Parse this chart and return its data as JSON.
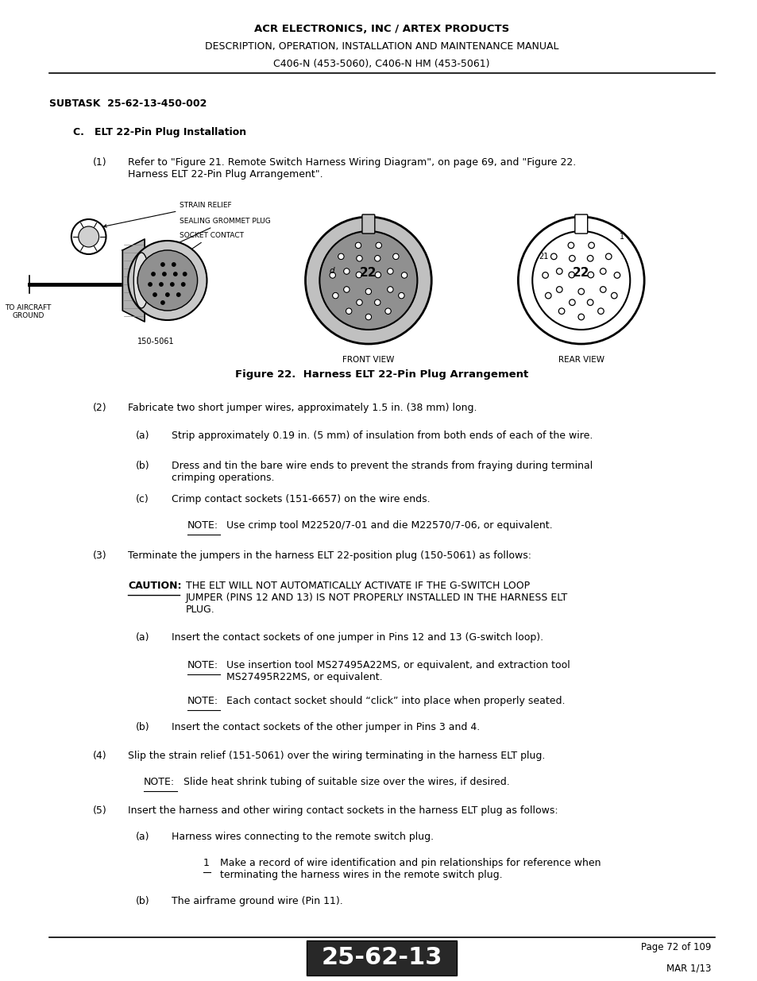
{
  "page_width": 9.54,
  "page_height": 12.35,
  "bg_color": "#ffffff",
  "header_line1": "ACR ELECTRONICS, INC / ARTEX PRODUCTS",
  "header_line2": "DESCRIPTION, OPERATION, INSTALLATION AND MAINTENANCE MANUAL",
  "header_line3": "C406-N (453-5060), C406-N HM (453-5061)",
  "subtask": "SUBTASK  25-62-13-450-002",
  "section_c": "C.   ELT 22-Pin Plug Installation",
  "para1_num": "(1)",
  "para1_text": "Refer to \"Figure 21. Remote Switch Harness Wiring Diagram\", on page 69, and \"Figure 22.\nHarness ELT 22-Pin Plug Arrangement\".",
  "figure_caption": "Figure 22.  Harness ELT 22-Pin Plug Arrangement",
  "para2_num": "(2)",
  "para2_text": "Fabricate two short jumper wires, approximately 1.5 in. (38 mm) long.",
  "para2a_text": "Strip approximately 0.19 in. (5 mm) of insulation from both ends of each of the wire.",
  "para2b_text": "Dress and tin the bare wire ends to prevent the strands from fraying during terminal\ncrimping operations.",
  "para2c_text": "Crimp contact sockets (151-6657) on the wire ends.",
  "note1_label": "NOTE:",
  "note1_text": "Use crimp tool M22520/7-01 and die M22570/7-06, or equivalent.",
  "para3_num": "(3)",
  "para3_text": "Terminate the jumpers in the harness ELT 22-position plug (150-5061) as follows:",
  "caution_label": "CAUTION:",
  "caution_text": "THE ELT WILL NOT AUTOMATICALLY ACTIVATE IF THE G-SWITCH LOOP\nJUMPER (PINS 12 AND 13) IS NOT PROPERLY INSTALLED IN THE HARNESS ELT\nPLUG.",
  "para3a_text": "Insert the contact sockets of one jumper in Pins 12 and 13 (G-switch loop).",
  "note2_label": "NOTE:",
  "note2_text": "Use insertion tool MS27495A22MS, or equivalent, and extraction tool\nMS27495R22MS, or equivalent.",
  "note3_label": "NOTE:",
  "note3_text": "Each contact socket should “click” into place when properly seated.",
  "para3b_text": "Insert the contact sockets of the other jumper in Pins 3 and 4.",
  "para4_num": "(4)",
  "para4_text": "Slip the strain relief (151-5061) over the wiring terminating in the harness ELT plug.",
  "note4_label": "NOTE:",
  "note4_text": "Slide heat shrink tubing of suitable size over the wires, if desired.",
  "para5_num": "(5)",
  "para5_text": "Insert the harness and other wiring contact sockets in the harness ELT plug as follows:",
  "para5a_text": "Harness wires connecting to the remote switch plug.",
  "para5a1_text": "Make a record of wire identification and pin relationships for reference when\nterminating the harness wires in the remote switch plug.",
  "para5b_text": "The airframe ground wire (Pin 11).",
  "footer_num": "25-62-13",
  "footer_page": "Page 72 of 109",
  "footer_date": "MAR 1/13"
}
